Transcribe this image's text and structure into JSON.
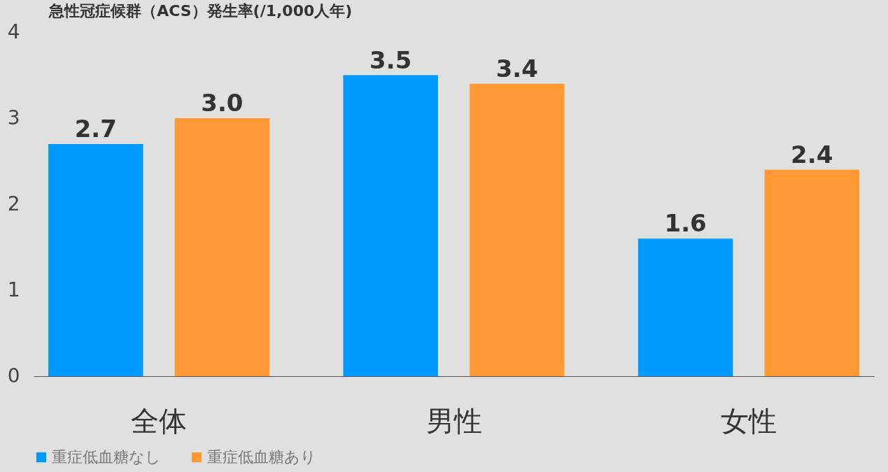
{
  "chart_data": {
    "type": "bar",
    "title": "急性冠症候群（ACS）発生率(/1,000人年)",
    "categories": [
      "全体",
      "男性",
      "女性"
    ],
    "series": [
      {
        "name": "重症低血糖なし",
        "color": "#0099ff",
        "values": [
          2.7,
          3.5,
          1.6
        ],
        "value_labels": [
          "2.7",
          "3.5",
          "1.6"
        ]
      },
      {
        "name": "重症低血糖あり",
        "color": "#ff9933",
        "values": [
          3.0,
          3.4,
          2.4
        ],
        "value_labels": [
          "3.0",
          "3.4",
          "2.4"
        ]
      }
    ],
    "ylim": [
      0,
      4
    ],
    "yticks": [
      0,
      1,
      2,
      3,
      4
    ],
    "legend": "bottom"
  }
}
